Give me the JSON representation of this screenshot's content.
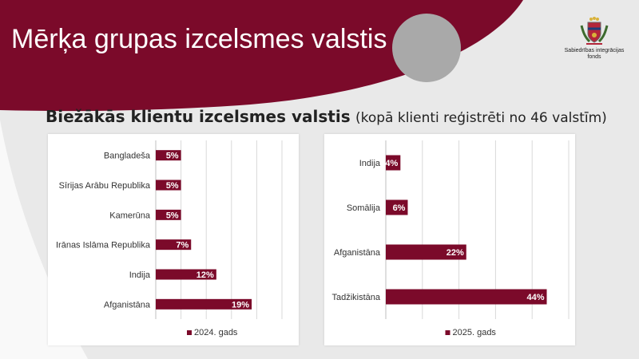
{
  "header": {
    "title": "Mērķa grupas izcelsmes valstis",
    "logo_line1": "Sabiedrības integrācijas",
    "logo_line2": "fonds"
  },
  "subtitle": {
    "bold": "Biežākās klientu izcelsmes valstis",
    "normal": "(kopā klienti reģistrēti no 46 valstīm)"
  },
  "colors": {
    "brand": "#7b0a2a",
    "accent_circle": "#a9a9a9",
    "grid": "#d9d9d9",
    "axis": "#bfbfbf"
  },
  "chart_data": [
    {
      "type": "bar",
      "orientation": "horizontal",
      "categories": [
        "Bangladeša",
        "Sīrijas Arābu Republika",
        "Kamerūna",
        "Irānas Islāma Republika",
        "Indija",
        "Afganistāna"
      ],
      "series": [
        {
          "name": "2024. gads",
          "values": [
            5,
            5,
            5,
            7,
            12,
            19
          ]
        }
      ],
      "data_labels": [
        "5%",
        "5%",
        "5%",
        "7%",
        "12%",
        "19%"
      ],
      "xlim": [
        0,
        25
      ],
      "grid_step": 5,
      "grid": true,
      "legend": "bottom"
    },
    {
      "type": "bar",
      "orientation": "horizontal",
      "categories": [
        "Indija",
        "Somālija",
        "Afganistāna",
        "Tadžikistāna"
      ],
      "series": [
        {
          "name": "2025. gads",
          "values": [
            4,
            6,
            22,
            44
          ]
        }
      ],
      "data_labels": [
        "4%",
        "6%",
        "22%",
        "44%"
      ],
      "xlim": [
        0,
        50
      ],
      "grid_step": 10,
      "grid": true,
      "legend": "bottom"
    }
  ]
}
